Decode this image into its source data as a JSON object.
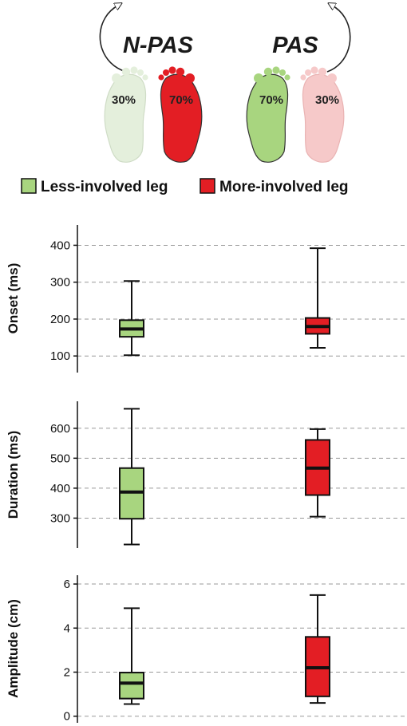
{
  "colors": {
    "less_involved": "#a8d57f",
    "more_involved": "#e31e24",
    "light_green": "#e4efdc",
    "light_red": "#f6c9c9",
    "grid": "#999999"
  },
  "conditions": [
    {
      "name": "N-PAS",
      "left_pct": "30%",
      "right_pct": "70%"
    },
    {
      "name": "PAS",
      "left_pct": "70%",
      "right_pct": "30%"
    }
  ],
  "legend": [
    {
      "label": "Less-involved leg",
      "color": "#a8d57f"
    },
    {
      "label": "More-involved leg",
      "color": "#e31e24"
    }
  ],
  "chart_data": [
    {
      "type": "box",
      "ylabel": "Onset (ms)",
      "ylim": [
        55,
        455
      ],
      "yticks": [
        100,
        200,
        300,
        400
      ],
      "grid": true,
      "series": [
        {
          "name": "Less-involved leg",
          "min": 102,
          "q1": 152,
          "median": 173,
          "q3": 197,
          "max": 303
        },
        {
          "name": "More-involved leg",
          "min": 122,
          "q1": 160,
          "median": 180,
          "q3": 203,
          "max": 392
        }
      ]
    },
    {
      "type": "box",
      "ylabel": "Duration (ms)",
      "ylim": [
        200,
        690
      ],
      "yticks": [
        300,
        400,
        500,
        600
      ],
      "grid": true,
      "series": [
        {
          "name": "Less-involved leg",
          "min": 212,
          "q1": 298,
          "median": 387,
          "q3": 467,
          "max": 665
        },
        {
          "name": "More-involved leg",
          "min": 305,
          "q1": 377,
          "median": 467,
          "q3": 561,
          "max": 597
        }
      ]
    },
    {
      "type": "box",
      "ylabel": "Amplitude (cm)",
      "ylim": [
        -0.3,
        6.4
      ],
      "yticks": [
        0,
        2,
        4,
        6
      ],
      "grid": true,
      "series": [
        {
          "name": "Less-involved leg",
          "min": 0.55,
          "q1": 0.8,
          "median": 1.5,
          "q3": 1.98,
          "max": 4.9
        },
        {
          "name": "More-involved leg",
          "min": 0.6,
          "q1": 0.9,
          "median": 2.2,
          "q3": 3.6,
          "max": 5.5
        }
      ]
    }
  ]
}
